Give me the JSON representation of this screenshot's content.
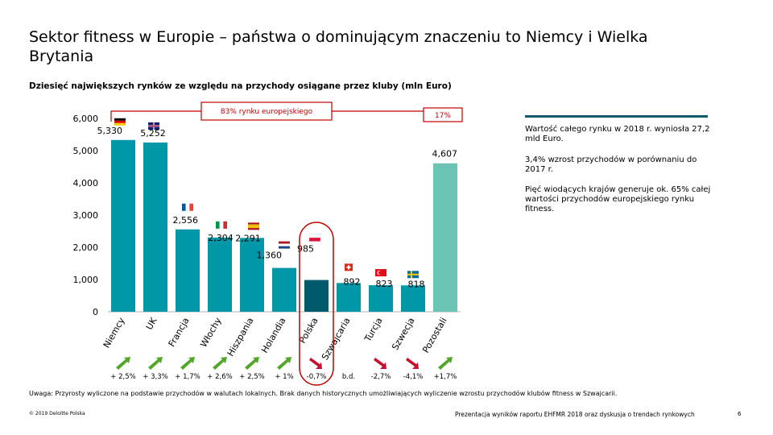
{
  "page": {
    "title": "Sektor fitness w Europie – państwa o dominującym znaczeniu to Niemcy i Wielka Brytania",
    "subtitle": "Dziesięć największych rynków ze względu na przychody osiągane przez kluby (mln Euro)"
  },
  "chart_data": {
    "type": "bar",
    "title": "Dziesięć największych rynków ze względu na przychody osiągane przez kluby (mln Euro)",
    "categories": [
      "Niemcy",
      "UK",
      "Francja",
      "Włochy",
      "Hiszpania",
      "Holandia",
      "Polska",
      "Szwajcaria",
      "Turcja",
      "Szwecja",
      "Pozostali"
    ],
    "values": [
      5330,
      5252,
      2556,
      2304,
      2291,
      1360,
      985,
      892,
      823,
      818,
      4607
    ],
    "value_labels": [
      "5,330",
      "5,252",
      "2,556",
      "2,304",
      "2,291",
      "1,360",
      "985",
      "892",
      "823",
      "818",
      "4,607"
    ],
    "growth_labels": [
      "+ 2,5%",
      "+ 3,3%",
      "+ 1,7%",
      "+ 2,6%",
      "+ 2,5%",
      "+ 1%",
      "-0,7%",
      "b.d.",
      "-2,7%",
      "-4,1%",
      "+1,7%"
    ],
    "growth_direction": [
      "up",
      "up",
      "up",
      "up",
      "up",
      "up",
      "down",
      "none",
      "down",
      "down",
      "up"
    ],
    "flags": [
      "germany-flag",
      "uk-flag",
      "france-flag",
      "italy-flag",
      "spain-flag",
      "netherlands-flag",
      "poland-flag",
      "switzerland-flag",
      "turkey-flag",
      "sweden-flag",
      ""
    ],
    "highlight_index": 6,
    "yticks": [
      "0",
      "1,000",
      "2,000",
      "3,000",
      "4,000",
      "5,000",
      "6,000"
    ],
    "ylim": [
      0,
      6000
    ],
    "bracket_main_label": "83% rynku europejskiego",
    "bracket_other_label": "17%",
    "colors": {
      "bar": "#0097a9",
      "bar_highlight": "#005a6b",
      "bar_other": "#6cc4b4",
      "bracket": "#c00000",
      "arrow_up": "#52a62a",
      "arrow_down": "#c8102e"
    }
  },
  "notes": [
    "Wartość całego rynku w 2018 r. wyniosła 27,2 mld Euro.",
    "3,4% wzrost przychodów w porównaniu do 2017 r.",
    "Pięć wiodących krajów generuje ok. 65% całej wartości przychodów europejskiego rynku fitness."
  ],
  "footer": {
    "note": "Uwaga: Przyrosty wyliczone na podstawie przychodów w walutach lokalnych. Brak danych historycznych umożliwiających wyliczenie wzrostu przychodów klubów fitness w Szwajcarii.",
    "copyright": "© 2019 Deloitte Polska",
    "right": "Prezentacja wyników raportu EHFMR 2018 oraz dyskusja o trendach rynkowych",
    "page_number": "6"
  }
}
